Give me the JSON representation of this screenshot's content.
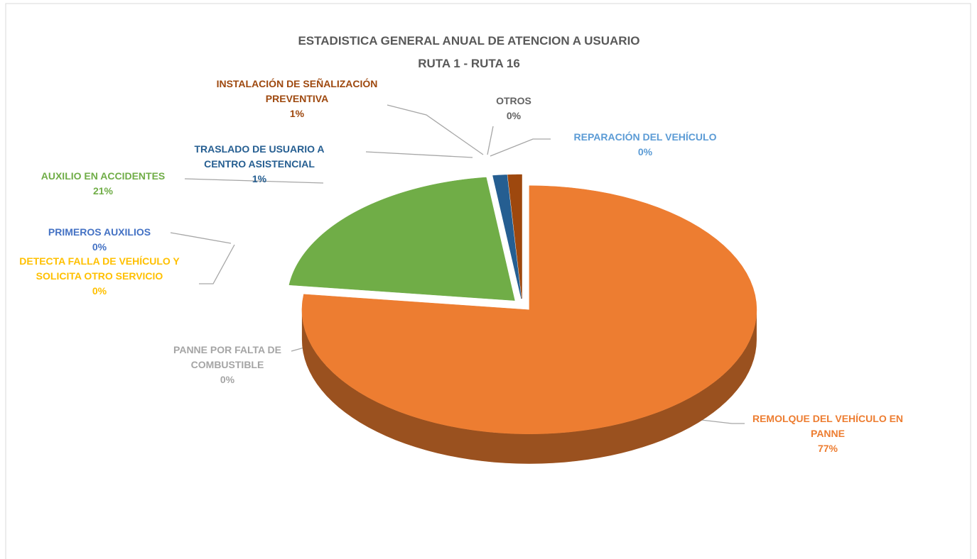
{
  "chart_data": {
    "type": "pie3d",
    "title": "ESTADISTICA GENERAL ANUAL DE ATENCION A USUARIO",
    "subtitle": "RUTA 1 -  RUTA 16",
    "categories": [
      "REMOLQUE DEL VEHÍCULO EN PANNE",
      "PANNE POR FALTA DE COMBUSTIBLE",
      "DETECTA FALLA DE VEHÍCULO Y SOLICITA OTRO SERVICIO",
      "PRIMEROS AUXILIOS",
      "AUXILIO EN ACCIDENTES",
      "TRASLADO DE USUARIO A CENTRO ASISTENCIAL",
      "INSTALACIÓN DE SEÑALIZACIÓN PREVENTIVA",
      "OTROS",
      "REPARACIÓN DEL VEHÍCULO"
    ],
    "values": [
      77,
      0,
      0,
      0,
      21,
      1,
      1,
      0,
      0
    ],
    "value_labels": [
      "77%",
      "0%",
      "0%",
      "0%",
      "21%",
      "1%",
      "1%",
      "0%",
      "0%"
    ],
    "colors": [
      "#ED7D31",
      "#A5A5A5",
      "#FFC000",
      "#4472C4",
      "#70AD47",
      "#255E91",
      "#9E480E",
      "#636363",
      "#5B9BD5"
    ]
  }
}
